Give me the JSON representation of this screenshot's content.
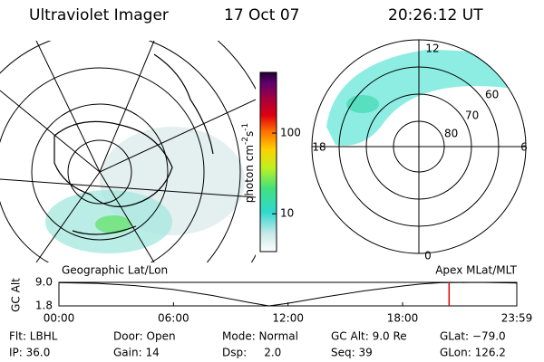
{
  "header": {
    "title": "Ultraviolet Imager",
    "date": "17 Oct 07",
    "time": "20:26:12 UT"
  },
  "colorbar": {
    "label_base": "photon cm",
    "label_exp1": "-2",
    "label_mid": "s",
    "label_exp2": "-1",
    "lim": [
      3.4,
      565
    ],
    "ticks": [
      10,
      100
    ],
    "log": true
  },
  "polar_plot": {
    "mlt_labels": [
      "12",
      "18",
      "6",
      "0"
    ],
    "lat_labels": [
      "60",
      "70",
      "80"
    ]
  },
  "timeline": {
    "left_label": "Geographic Lat/Lon",
    "right_label": "Apex MLat/MLT",
    "ylabel": "GC Alt",
    "xlim": [
      0,
      23.983
    ],
    "ylim": [
      1.8,
      9.0
    ],
    "yticks": [
      {
        "value": 9.0,
        "label": "9.0"
      },
      {
        "value": 1.8,
        "label": "1.8"
      }
    ],
    "xticks": [
      {
        "value": 0,
        "label": "00:00"
      },
      {
        "value": 6,
        "label": "06:00"
      },
      {
        "value": 12,
        "label": "12:00"
      },
      {
        "value": 18,
        "label": "18:00"
      },
      {
        "value": 23.983,
        "label": "23:59"
      }
    ],
    "x": [
      0,
      2,
      4,
      6,
      8,
      10,
      11,
      12,
      14,
      16,
      18,
      19,
      20,
      22,
      23.983
    ],
    "values": [
      8.9,
      8.7,
      8.0,
      6.8,
      5.0,
      2.8,
      1.8,
      2.6,
      4.6,
      6.4,
      7.9,
      8.5,
      8.9,
      9.0,
      8.8
    ],
    "color": "#000000",
    "marker_x": 20.436,
    "marker_color": "#e00000"
  },
  "info": [
    [
      "Flt: LBHL",
      "Door: Open",
      "Mode: Normal",
      "GC Alt: 9.0 Re",
      "GLat: −79.0"
    ],
    [
      "IP: 36.0",
      "Gain: 14",
      "Dsp:     2.0",
      "Seq: 39",
      "GLon: 126.2"
    ]
  ]
}
